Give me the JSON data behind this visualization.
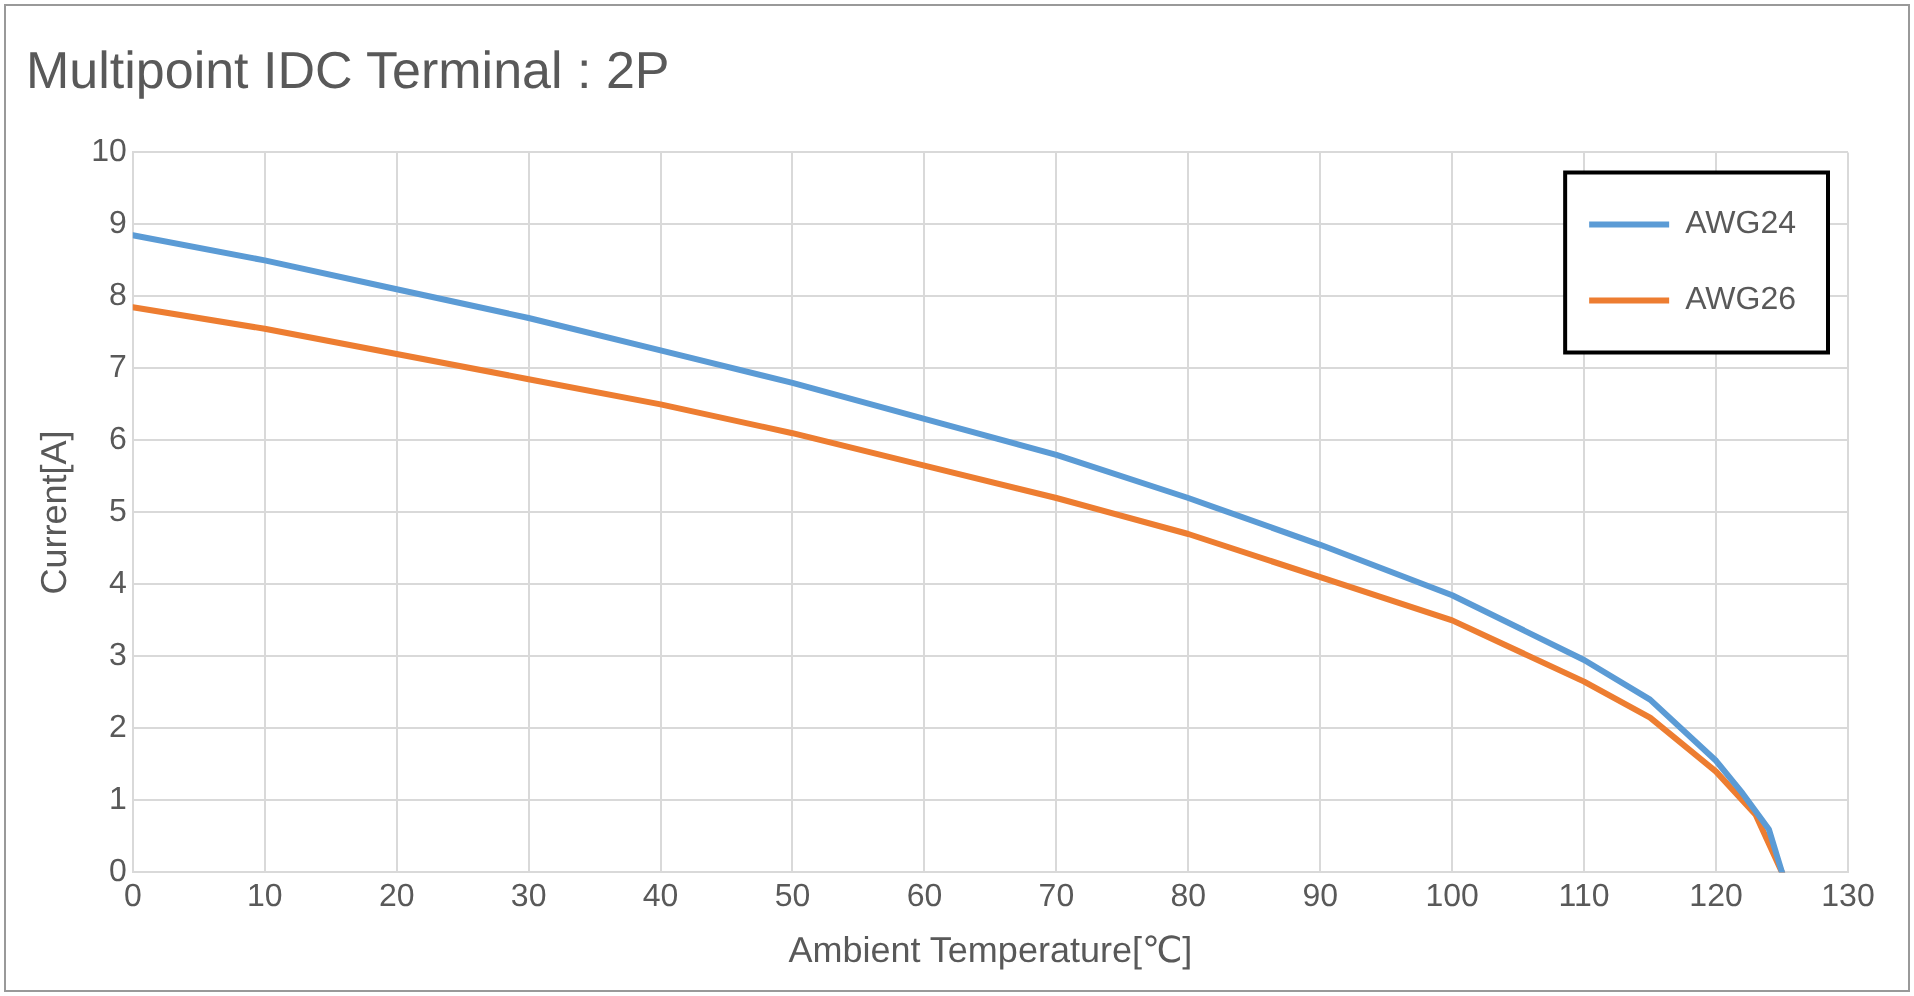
{
  "chart_data": {
    "type": "line",
    "title": "Multipoint IDC Terminal : 2P",
    "xlabel": "Ambient Temperature[℃]",
    "ylabel": "Current[A]",
    "xlim": [
      0,
      130
    ],
    "xticks": [
      0,
      10,
      20,
      30,
      40,
      50,
      60,
      70,
      80,
      90,
      100,
      110,
      120,
      130
    ],
    "ylim": [
      0,
      10
    ],
    "yticks": [
      0,
      1,
      2,
      3,
      4,
      5,
      6,
      7,
      8,
      9,
      10
    ],
    "grid": true,
    "legend": "top right",
    "marker": "none",
    "line_style": "solid",
    "series": [
      {
        "name": "AWG24",
        "color": "#5b9bd5",
        "x": [
          0,
          10,
          20,
          30,
          40,
          50,
          60,
          70,
          80,
          90,
          100,
          110,
          115,
          120,
          122,
          124,
          125
        ],
        "values": [
          8.85,
          8.5,
          8.1,
          7.7,
          7.25,
          6.8,
          6.3,
          5.8,
          5.2,
          4.55,
          3.85,
          2.95,
          2.4,
          1.55,
          1.1,
          0.6,
          0
        ]
      },
      {
        "name": "AWG26",
        "color": "#ed7d31",
        "x": [
          0,
          10,
          20,
          30,
          40,
          50,
          60,
          70,
          80,
          90,
          100,
          110,
          115,
          120,
          123,
          125
        ],
        "values": [
          7.85,
          7.55,
          7.2,
          6.85,
          6.5,
          6.1,
          5.65,
          5.2,
          4.7,
          4.1,
          3.5,
          2.65,
          2.15,
          1.4,
          0.8,
          0
        ]
      }
    ]
  }
}
